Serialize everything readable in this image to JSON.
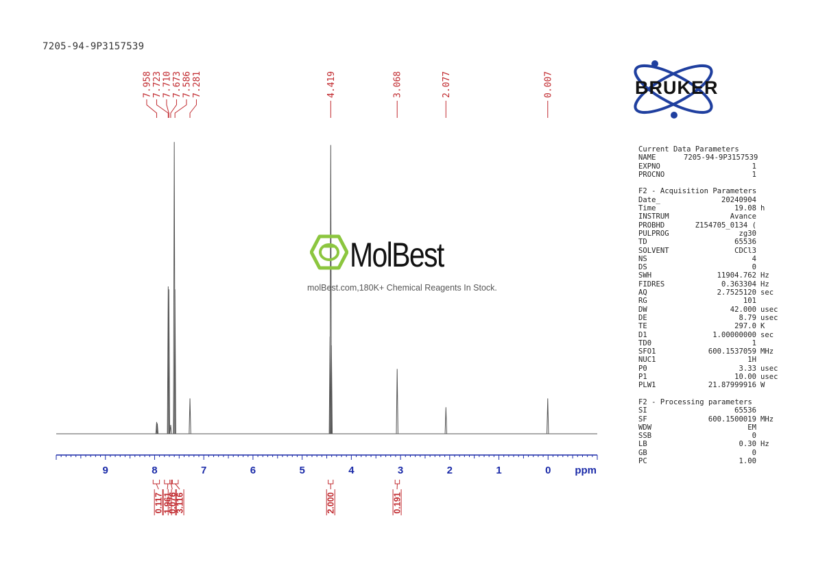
{
  "sample_title": "7205-94-9P3157539",
  "watermark": {
    "name": "MolBest",
    "caption": "molBest.com,180K+ Chemical Reagents In Stock.",
    "icon": "benzene-ring-icon",
    "color": "#8cc63f"
  },
  "logo": {
    "text": "BRUKER",
    "color": "#1f3f9f"
  },
  "colors": {
    "axis": "#1a2aa8",
    "annotation": "#c0282d",
    "trace": "#555555"
  },
  "chart_data": {
    "type": "line",
    "title": "7205-94-9P3157539",
    "xlabel": "ppm",
    "xlim": [
      10.0,
      -1.0
    ],
    "x_direction": "reversed",
    "x_ticks": [
      9,
      8,
      7,
      6,
      5,
      4,
      3,
      2,
      1,
      0
    ],
    "x_tick_labels": [
      "9",
      "8",
      "7",
      "6",
      "5",
      "4",
      "3",
      "2",
      "1",
      "0"
    ],
    "peaks": [
      {
        "ppm": 7.958,
        "intensity": 0.04
      },
      {
        "ppm": 7.945,
        "intensity": 0.035
      },
      {
        "ppm": 7.723,
        "intensity": 0.5
      },
      {
        "ppm": 7.71,
        "intensity": 0.49
      },
      {
        "ppm": 7.673,
        "intensity": 0.03
      },
      {
        "ppm": 7.6,
        "intensity": 0.99
      },
      {
        "ppm": 7.586,
        "intensity": 0.49
      },
      {
        "ppm": 7.281,
        "intensity": 0.12
      },
      {
        "ppm": 4.419,
        "intensity": 0.98
      },
      {
        "ppm": 4.405,
        "intensity": 0.3
      },
      {
        "ppm": 4.433,
        "intensity": 0.33
      },
      {
        "ppm": 3.068,
        "intensity": 0.22
      },
      {
        "ppm": 2.077,
        "intensity": 0.09
      },
      {
        "ppm": 0.007,
        "intensity": 0.12
      }
    ],
    "peak_labels": [
      "7.958",
      "7.723",
      "7.710",
      "7.673",
      "7.586",
      "7.281",
      "4.419",
      "3.068",
      "2.077",
      "0.007"
    ],
    "peak_label_ppm": [
      7.958,
      7.723,
      7.71,
      7.673,
      7.586,
      7.281,
      4.419,
      3.068,
      2.077,
      0.007
    ],
    "integrals": [
      {
        "from": 8.03,
        "to": 7.9,
        "value": "0.117"
      },
      {
        "from": 7.8,
        "to": 7.66,
        "value": "1.961"
      },
      {
        "from": 7.69,
        "to": 7.64,
        "value": "0.076"
      },
      {
        "from": 7.64,
        "to": 7.52,
        "value": "3.116"
      },
      {
        "from": 4.47,
        "to": 4.37,
        "value": "2.000"
      },
      {
        "from": 3.11,
        "to": 3.02,
        "value": "0.191"
      }
    ],
    "integral_label_ppm": [
      7.92,
      7.74,
      7.64,
      7.49,
      4.42,
      3.07
    ]
  },
  "parameters": {
    "sections": [
      {
        "title": "Current Data Parameters",
        "rows": [
          {
            "key": "NAME",
            "value": "7205-94-9P3157539",
            "unit": ""
          },
          {
            "key": "EXPNO",
            "value": "1",
            "unit": ""
          },
          {
            "key": "PROCNO",
            "value": "1",
            "unit": ""
          }
        ]
      },
      {
        "title": "F2 - Acquisition Parameters",
        "rows": [
          {
            "key": "Date_",
            "value": "20240904",
            "unit": ""
          },
          {
            "key": "Time",
            "value": "19.08",
            "unit": "h"
          },
          {
            "key": "INSTRUM",
            "value": "Avance",
            "unit": ""
          },
          {
            "key": "PROBHD",
            "value": "Z154705_0134 (",
            "unit": ""
          },
          {
            "key": "PULPROG",
            "value": "zg30",
            "unit": ""
          },
          {
            "key": "TD",
            "value": "65536",
            "unit": ""
          },
          {
            "key": "SOLVENT",
            "value": "CDCl3",
            "unit": ""
          },
          {
            "key": "NS",
            "value": "4",
            "unit": ""
          },
          {
            "key": "DS",
            "value": "0",
            "unit": ""
          },
          {
            "key": "SWH",
            "value": "11904.762",
            "unit": "Hz"
          },
          {
            "key": "FIDRES",
            "value": "0.363304",
            "unit": "Hz"
          },
          {
            "key": "AQ",
            "value": "2.7525120",
            "unit": "sec"
          },
          {
            "key": "RG",
            "value": "101",
            "unit": ""
          },
          {
            "key": "DW",
            "value": "42.000",
            "unit": "usec"
          },
          {
            "key": "DE",
            "value": "8.79",
            "unit": "usec"
          },
          {
            "key": "TE",
            "value": "297.0",
            "unit": "K"
          },
          {
            "key": "D1",
            "value": "1.00000000",
            "unit": "sec"
          },
          {
            "key": "TD0",
            "value": "1",
            "unit": ""
          },
          {
            "key": "SFO1",
            "value": "600.1537059",
            "unit": "MHz"
          },
          {
            "key": "NUC1",
            "value": "1H",
            "unit": ""
          },
          {
            "key": "P0",
            "value": "3.33",
            "unit": "usec"
          },
          {
            "key": "P1",
            "value": "10.00",
            "unit": "usec"
          },
          {
            "key": "PLW1",
            "value": "21.87999916",
            "unit": "W"
          }
        ]
      },
      {
        "title": "F2 - Processing parameters",
        "rows": [
          {
            "key": "SI",
            "value": "65536",
            "unit": ""
          },
          {
            "key": "SF",
            "value": "600.1500019",
            "unit": "MHz"
          },
          {
            "key": "WDW",
            "value": "EM",
            "unit": ""
          },
          {
            "key": "SSB",
            "value": "0",
            "unit": ""
          },
          {
            "key": "LB",
            "value": "0.30",
            "unit": "Hz"
          },
          {
            "key": "GB",
            "value": "0",
            "unit": ""
          },
          {
            "key": "PC",
            "value": "1.00",
            "unit": ""
          }
        ]
      }
    ]
  }
}
